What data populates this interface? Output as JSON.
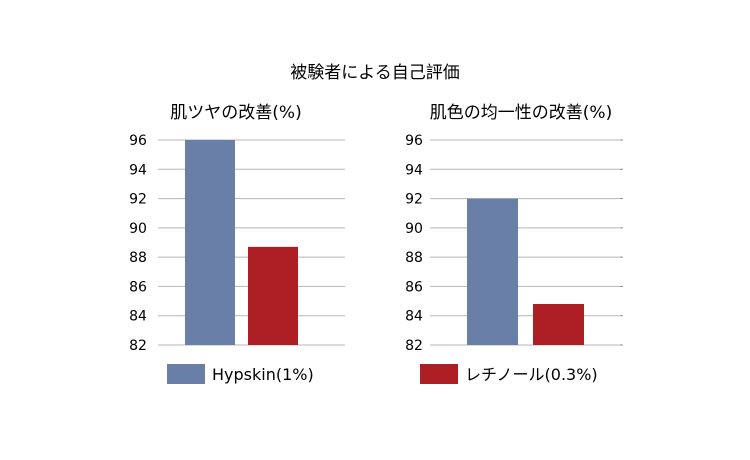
{
  "figure": {
    "title": "被験者による自己評価"
  },
  "legend": [
    {
      "label": "Hypskin(1%)",
      "color": "#6a7fa8"
    },
    {
      "label": "レチノール(0.3%)",
      "color": "#ad1f25"
    }
  ],
  "chart_data": [
    {
      "type": "bar",
      "title": "肌ツヤの改善(%)",
      "categories": [
        "Hypskin(1%)",
        "レチノール(0.3%)"
      ],
      "series": [
        {
          "values": [
            96,
            88.7
          ]
        }
      ],
      "ylim": [
        82,
        96
      ],
      "yticks": [
        96,
        94,
        92,
        90,
        88,
        86,
        84,
        82
      ],
      "grid": true,
      "legend": "bottom"
    },
    {
      "type": "bar",
      "title": "肌色の均一性の改善(%)",
      "categories": [
        "Hypskin(1%)",
        "レチノール(0.3%)"
      ],
      "series": [
        {
          "values": [
            92,
            84.8
          ]
        }
      ],
      "ylim": [
        82,
        96
      ],
      "yticks": [
        96,
        94,
        92,
        90,
        88,
        86,
        84,
        82
      ],
      "grid": true,
      "legend": "bottom"
    }
  ]
}
